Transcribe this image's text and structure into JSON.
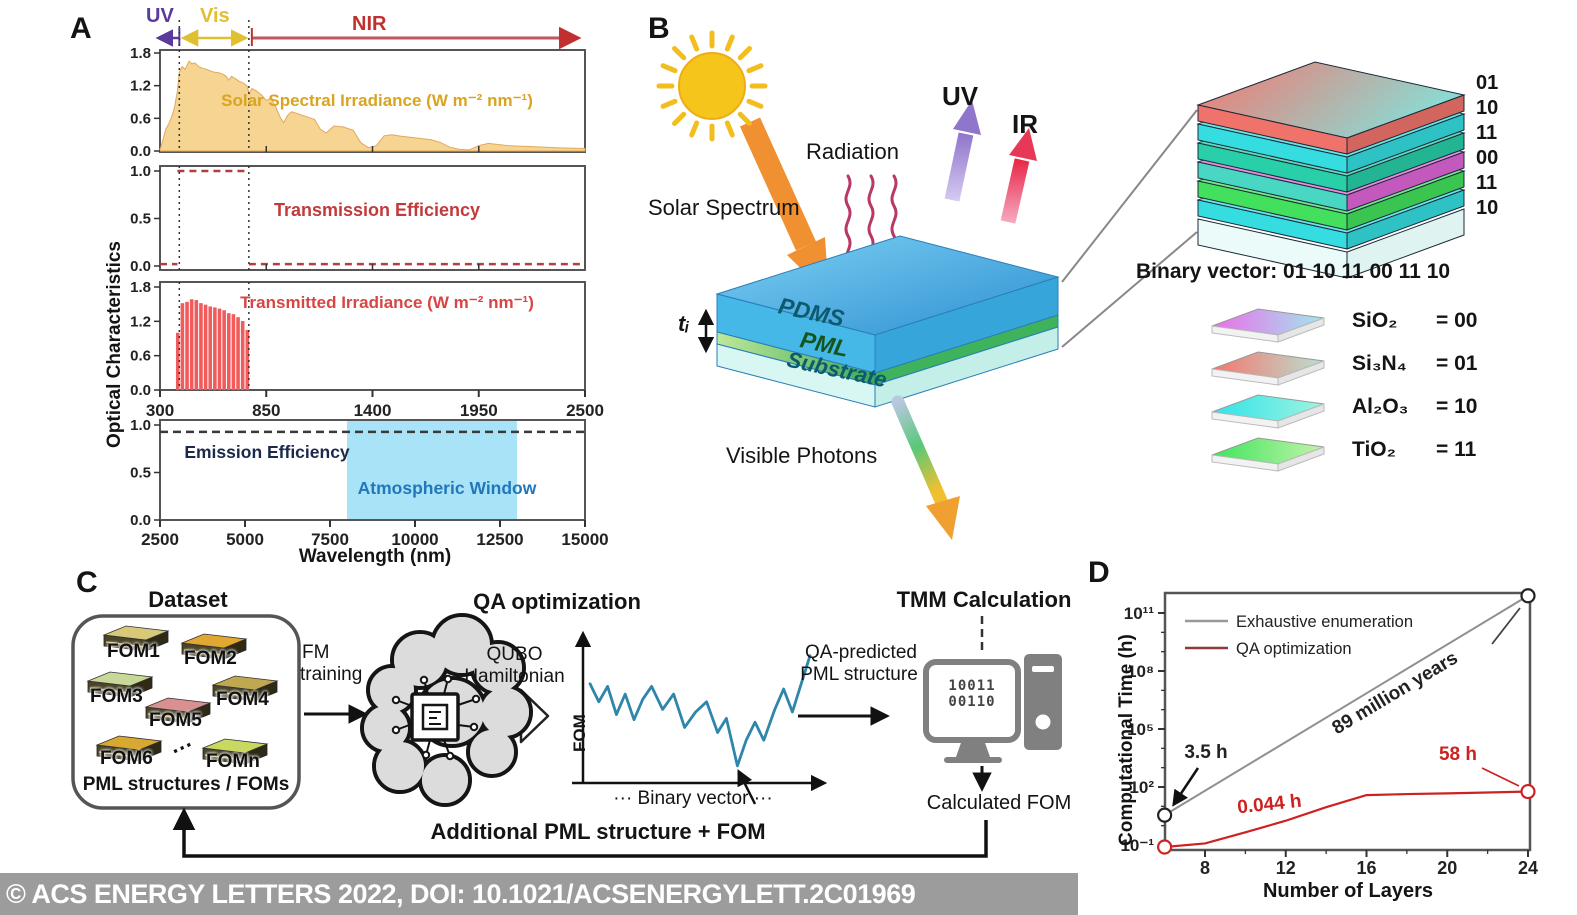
{
  "figure": {
    "panel_a": "A",
    "panel_b": "B",
    "panel_c": "C",
    "panel_d": "D"
  },
  "banner": {
    "text": "© ACS ENERGY LETTERS 2022, DOI: 10.1021/ACSENERGYLETT.2C01969",
    "bg": "#9C9C9C"
  },
  "panelA": {
    "bands": {
      "uv": "UV",
      "vis": "Vis",
      "nir": "NIR"
    },
    "ylabel": "Optical Characteristics",
    "xlabel": "Wavelength (nm)",
    "guides_nm": [
      400,
      760
    ],
    "colors": {
      "uv": "#5B3A9B",
      "vis": "#E0C030",
      "nir": "#C03030",
      "solar_fill": "#F6D491",
      "solar_text": "#D9A520",
      "red_text": "#C23B3B",
      "transmitted_fill": "#F15B5B",
      "atm_window": "#A9E3F8",
      "atm_text": "#2277BB"
    }
  },
  "chart_data": [
    {
      "id": "solar_irradiance",
      "type": "area",
      "title": "Solar Spectral Irradiance (W m⁻² nm⁻¹)",
      "x_range": [
        300,
        2500
      ],
      "y_range": [
        0,
        1.8
      ],
      "y_ticks": [
        "1.8",
        "1.2",
        "0.6",
        "0.0"
      ],
      "y_tick_values": [
        1.8,
        1.2,
        0.6,
        0
      ],
      "points": [
        [
          300,
          0.02
        ],
        [
          315,
          0.2
        ],
        [
          330,
          0.4
        ],
        [
          345,
          0.5
        ],
        [
          360,
          0.62
        ],
        [
          375,
          0.8
        ],
        [
          390,
          1.1
        ],
        [
          400,
          1.45
        ],
        [
          415,
          1.55
        ],
        [
          430,
          1.5
        ],
        [
          450,
          1.65
        ],
        [
          465,
          1.6
        ],
        [
          480,
          1.62
        ],
        [
          500,
          1.55
        ],
        [
          520,
          1.52
        ],
        [
          540,
          1.5
        ],
        [
          560,
          1.47
        ],
        [
          580,
          1.45
        ],
        [
          600,
          1.44
        ],
        [
          620,
          1.42
        ],
        [
          640,
          1.38
        ],
        [
          656,
          1.3
        ],
        [
          670,
          1.37
        ],
        [
          690,
          1.33
        ],
        [
          710,
          1.28
        ],
        [
          730,
          1.25
        ],
        [
          750,
          1.2
        ],
        [
          762,
          1.05
        ],
        [
          775,
          1.15
        ],
        [
          800,
          1.1
        ],
        [
          825,
          1.03
        ],
        [
          850,
          0.93
        ],
        [
          875,
          0.97
        ],
        [
          900,
          0.8
        ],
        [
          925,
          0.6
        ],
        [
          940,
          0.52
        ],
        [
          960,
          0.65
        ],
        [
          980,
          0.72
        ],
        [
          1000,
          0.7
        ],
        [
          1050,
          0.64
        ],
        [
          1100,
          0.58
        ],
        [
          1130,
          0.4
        ],
        [
          1160,
          0.33
        ],
        [
          1200,
          0.46
        ],
        [
          1250,
          0.44
        ],
        [
          1300,
          0.38
        ],
        [
          1340,
          0.15
        ],
        [
          1380,
          0.06
        ],
        [
          1420,
          0.1
        ],
        [
          1460,
          0.28
        ],
        [
          1500,
          0.3
        ],
        [
          1550,
          0.27
        ],
        [
          1600,
          0.25
        ],
        [
          1650,
          0.23
        ],
        [
          1700,
          0.21
        ],
        [
          1750,
          0.16
        ],
        [
          1800,
          0.07
        ],
        [
          1850,
          0.03
        ],
        [
          1900,
          0.02
        ],
        [
          1950,
          0.1
        ],
        [
          2000,
          0.14
        ],
        [
          2050,
          0.12
        ],
        [
          2100,
          0.1
        ],
        [
          2150,
          0.09
        ],
        [
          2200,
          0.085
        ],
        [
          2250,
          0.075
        ],
        [
          2300,
          0.07
        ],
        [
          2350,
          0.06
        ],
        [
          2400,
          0.055
        ],
        [
          2450,
          0.05
        ],
        [
          2500,
          0.045
        ]
      ]
    },
    {
      "id": "transmission_efficiency",
      "type": "line",
      "style": "dashed",
      "title": "Transmission Efficiency",
      "x_range": [
        300,
        2500
      ],
      "y_range": [
        0,
        1
      ],
      "y_ticks": [
        "1.0",
        "0.5",
        "0.0"
      ],
      "y_tick_values": [
        1,
        0.5,
        0
      ],
      "segments": [
        [
          300,
          390,
          0.02
        ],
        [
          390,
          760,
          1.0
        ],
        [
          760,
          2500,
          0.02
        ]
      ]
    },
    {
      "id": "transmitted_irradiance",
      "type": "bars",
      "title": "Transmitted Irradiance (W m⁻² nm⁻¹)",
      "x_range": [
        300,
        2500
      ],
      "y_range": [
        0,
        1.8
      ],
      "y_ticks": [
        "1.8",
        "1.2",
        "0.6",
        "0.0"
      ],
      "y_tick_values": [
        1.8,
        1.2,
        0.6,
        0
      ],
      "x_ticks": [
        "300",
        "850",
        "1400",
        "1950",
        "2500"
      ],
      "x_tick_values": [
        300,
        850,
        1400,
        1950,
        2500
      ],
      "band": [
        392,
        758
      ],
      "envelope": [
        [
          392,
          1.0
        ],
        [
          400,
          1.42
        ],
        [
          415,
          1.52
        ],
        [
          430,
          1.48
        ],
        [
          450,
          1.6
        ],
        [
          470,
          1.58
        ],
        [
          490,
          1.57
        ],
        [
          510,
          1.52
        ],
        [
          530,
          1.5
        ],
        [
          550,
          1.47
        ],
        [
          570,
          1.45
        ],
        [
          590,
          1.44
        ],
        [
          610,
          1.42
        ],
        [
          630,
          1.4
        ],
        [
          650,
          1.34
        ],
        [
          670,
          1.35
        ],
        [
          690,
          1.3
        ],
        [
          710,
          1.26
        ],
        [
          730,
          1.2
        ],
        [
          745,
          1.12
        ],
        [
          755,
          1.02
        ],
        [
          758,
          0.85
        ]
      ]
    },
    {
      "id": "emission_efficiency",
      "type": "line",
      "style": "dashed",
      "title": "Emission Efficiency",
      "x_range": [
        2500,
        15000
      ],
      "y_range": [
        0,
        1
      ],
      "y_ticks": [
        "1.0",
        "0.5",
        "0.0"
      ],
      "y_tick_values": [
        1,
        0.5,
        0
      ],
      "x_ticks": [
        "2500",
        "5000",
        "7500",
        "10000",
        "12500",
        "15000"
      ],
      "x_tick_values": [
        2500,
        5000,
        7500,
        10000,
        12500,
        15000
      ],
      "line_value": 0.97,
      "band": {
        "label": "Atmospheric Window",
        "x": [
          8000,
          13000
        ]
      }
    },
    {
      "id": "computational_time",
      "type": "line-log",
      "xlabel": "Number of Layers",
      "ylabel": "Computational Time (h)",
      "x_ticks": [
        8,
        12,
        16,
        20,
        24
      ],
      "y_tick_labels": [
        "10⁻¹",
        "10²",
        "10⁵",
        "10⁸",
        "10¹¹"
      ],
      "y_tick_exponents": [
        -1,
        2,
        5,
        8,
        11
      ],
      "series": [
        {
          "name": "Exhaustive enumeration",
          "color": "#909090",
          "points": [
            [
              6,
              3.5
            ],
            [
              24,
              780000000000
            ]
          ]
        },
        {
          "name": "QA optimization",
          "color": "#CC2222",
          "points": [
            [
              6,
              0.044
            ],
            [
              8,
              0.12
            ],
            [
              10,
              0.45
            ],
            [
              12,
              1.8
            ],
            [
              14,
              9
            ],
            [
              16,
              38
            ],
            [
              18,
              43
            ],
            [
              20,
              47
            ],
            [
              22,
              52
            ],
            [
              24,
              58
            ]
          ]
        }
      ],
      "annotations": [
        {
          "text": "3.5 h"
        },
        {
          "text": "0.044 h"
        },
        {
          "text": "58 h"
        },
        {
          "text": "89 million years"
        }
      ]
    }
  ],
  "panelB": {
    "solar_spectrum": "Solar Spectrum",
    "radiation": "Radiation",
    "uv": "UV",
    "ir": "IR",
    "layers": {
      "pdms": "PDMS",
      "pml": "PML",
      "substrate": "Substrate"
    },
    "thickness": "tᵢ",
    "visible_photons": "Visible Photons",
    "binary_vector": "Binary vector: 01 10 11 00 11 10",
    "stack_bits": [
      "01",
      "10",
      "11",
      "00",
      "11",
      "10"
    ],
    "stack_colors": [
      "#F0736B",
      "#35DDE0",
      "#28CFA8",
      "#E066D8",
      "#42E05C",
      "#35DDE0"
    ],
    "legend": [
      {
        "material": "SiO₂",
        "code": "= 00",
        "color": "#EE6CEA"
      },
      {
        "material": "Si₃N₄",
        "code": "= 01",
        "color": "#F4766E"
      },
      {
        "material": "Al₂O₃",
        "code": "= 10",
        "color": "#2FE3EA"
      },
      {
        "material": "TiO₂",
        "code": "= 11",
        "color": "#3FE45F"
      }
    ]
  },
  "panelC": {
    "dataset_title": "Dataset",
    "fom_chips": [
      {
        "label": "FOM1",
        "color": "#D8C87A"
      },
      {
        "label": "FOM2",
        "color": "#E0A830"
      },
      {
        "label": "FOM3",
        "color": "#C8D898"
      },
      {
        "label": "FOM4",
        "color": "#C0A850"
      },
      {
        "label": "FOM5",
        "color": "#D89090"
      },
      {
        "label": "FOM6",
        "color": "#D8A830"
      },
      {
        "label": "FOMn",
        "color": "#C8D860"
      }
    ],
    "dots": "···",
    "dataset_caption": "PML structures / FOMs",
    "fm_training_line1": "FM",
    "fm_training_line2": "training",
    "qa_title": "QA optimization",
    "qubo_line1": "QUBO",
    "qubo_line2": "Hamiltonian",
    "fom_axis_label": "FOM",
    "binary_axis_label": "··· Binary vector ···",
    "fom_curve": [
      [
        0,
        0.28
      ],
      [
        0.04,
        0.42
      ],
      [
        0.08,
        0.3
      ],
      [
        0.12,
        0.52
      ],
      [
        0.16,
        0.36
      ],
      [
        0.2,
        0.56
      ],
      [
        0.24,
        0.4
      ],
      [
        0.28,
        0.3
      ],
      [
        0.33,
        0.48
      ],
      [
        0.38,
        0.36
      ],
      [
        0.43,
        0.62
      ],
      [
        0.48,
        0.5
      ],
      [
        0.53,
        0.42
      ],
      [
        0.58,
        0.66
      ],
      [
        0.62,
        0.55
      ],
      [
        0.67,
        0.92
      ],
      [
        0.71,
        0.72
      ],
      [
        0.75,
        0.58
      ],
      [
        0.79,
        0.72
      ],
      [
        0.84,
        0.48
      ],
      [
        0.88,
        0.32
      ],
      [
        0.92,
        0.5
      ],
      [
        0.96,
        0.28
      ],
      [
        1,
        0.06
      ]
    ],
    "qa_predicted_line1": "QA-predicted",
    "qa_predicted_line2": "PML structure",
    "tmm_title": "TMM Calculation",
    "screen_line1": "10011",
    "screen_line2": "00110",
    "calculated_fom": "Calculated FOM",
    "loop_label": "Additional PML structure + FOM"
  },
  "panelD": {
    "xlabel": "Number of Layers",
    "ylabel": "Computational Time (h)"
  }
}
